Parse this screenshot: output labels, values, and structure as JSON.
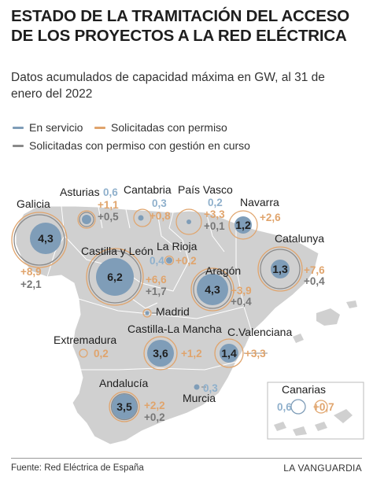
{
  "header": {
    "title": "ESTADO DE LA TRAMITACIÓN DEL ACCESO DE LOS PROYECTOS A LA RED ELÉCTRICA",
    "subtitle": "Datos acumulados de capacidad máxima en GW, al 31 de enero del 2022"
  },
  "legend": [
    {
      "label": "En servicio",
      "color": "#7f9db8"
    },
    {
      "label": "Solicitadas con permiso",
      "color": "#e0a46c"
    },
    {
      "label": "Solicitadas con permiso con gestión en curso",
      "color": "#8a8a8a"
    }
  ],
  "colors": {
    "servicio": "#7f9db8",
    "permiso": "#e0a46c",
    "gestion": "#777777",
    "land": "#d0d0d0"
  },
  "regions": {
    "galicia": {
      "name": "Galicia",
      "servicio": "4,3",
      "permiso": "+8,9",
      "gestion": "+2,1"
    },
    "asturias": {
      "name": "Asturias",
      "servicio": "0,6",
      "permiso": "+1,1",
      "gestion": "+0,5"
    },
    "cantabria": {
      "name": "Cantabria",
      "servicio": "0,3",
      "permiso": "+0,8"
    },
    "pais_vasco": {
      "name": "País Vasco",
      "servicio": "0,2",
      "permiso": "+3,3",
      "gestion": "+0,1"
    },
    "navarra": {
      "name": "Navarra",
      "servicio": "1,2",
      "permiso": "+2,6"
    },
    "la_rioja": {
      "name": "La Rioja",
      "servicio": "0,4",
      "permiso": "+0,2"
    },
    "catalunya": {
      "name": "Catalunya",
      "servicio": "1,3",
      "permiso": "+7,6",
      "gestion": "+0,4"
    },
    "castilla_leon": {
      "name": "Castilla y León",
      "servicio": "6,2",
      "permiso": "+6,6",
      "gestion": "+1,7"
    },
    "aragon": {
      "name": "Aragón",
      "servicio": "4,3",
      "permiso": "+3,9",
      "gestion": "+0,4"
    },
    "madrid": {
      "name": "Madrid"
    },
    "extremadura": {
      "name": "Extremadura",
      "permiso": "0,2"
    },
    "castilla_la_mancha": {
      "name": "Castilla-La Mancha",
      "servicio": "3,6",
      "permiso": "+1,2"
    },
    "c_valenciana": {
      "name": "C.Valenciana",
      "servicio": "1,4",
      "permiso": "+3,3"
    },
    "andalucia": {
      "name": "Andalucía",
      "servicio": "3,5",
      "permiso": "+2,2",
      "gestion": "+0,2"
    },
    "murcia": {
      "name": "Murcia",
      "servicio": "0,3"
    },
    "canarias": {
      "name": "Canarias",
      "servicio": "0,6",
      "permiso": "+0,7"
    }
  },
  "footer": {
    "source": "Fuente: Red Eléctrica de España",
    "brand": "LA VANGUARDIA"
  }
}
